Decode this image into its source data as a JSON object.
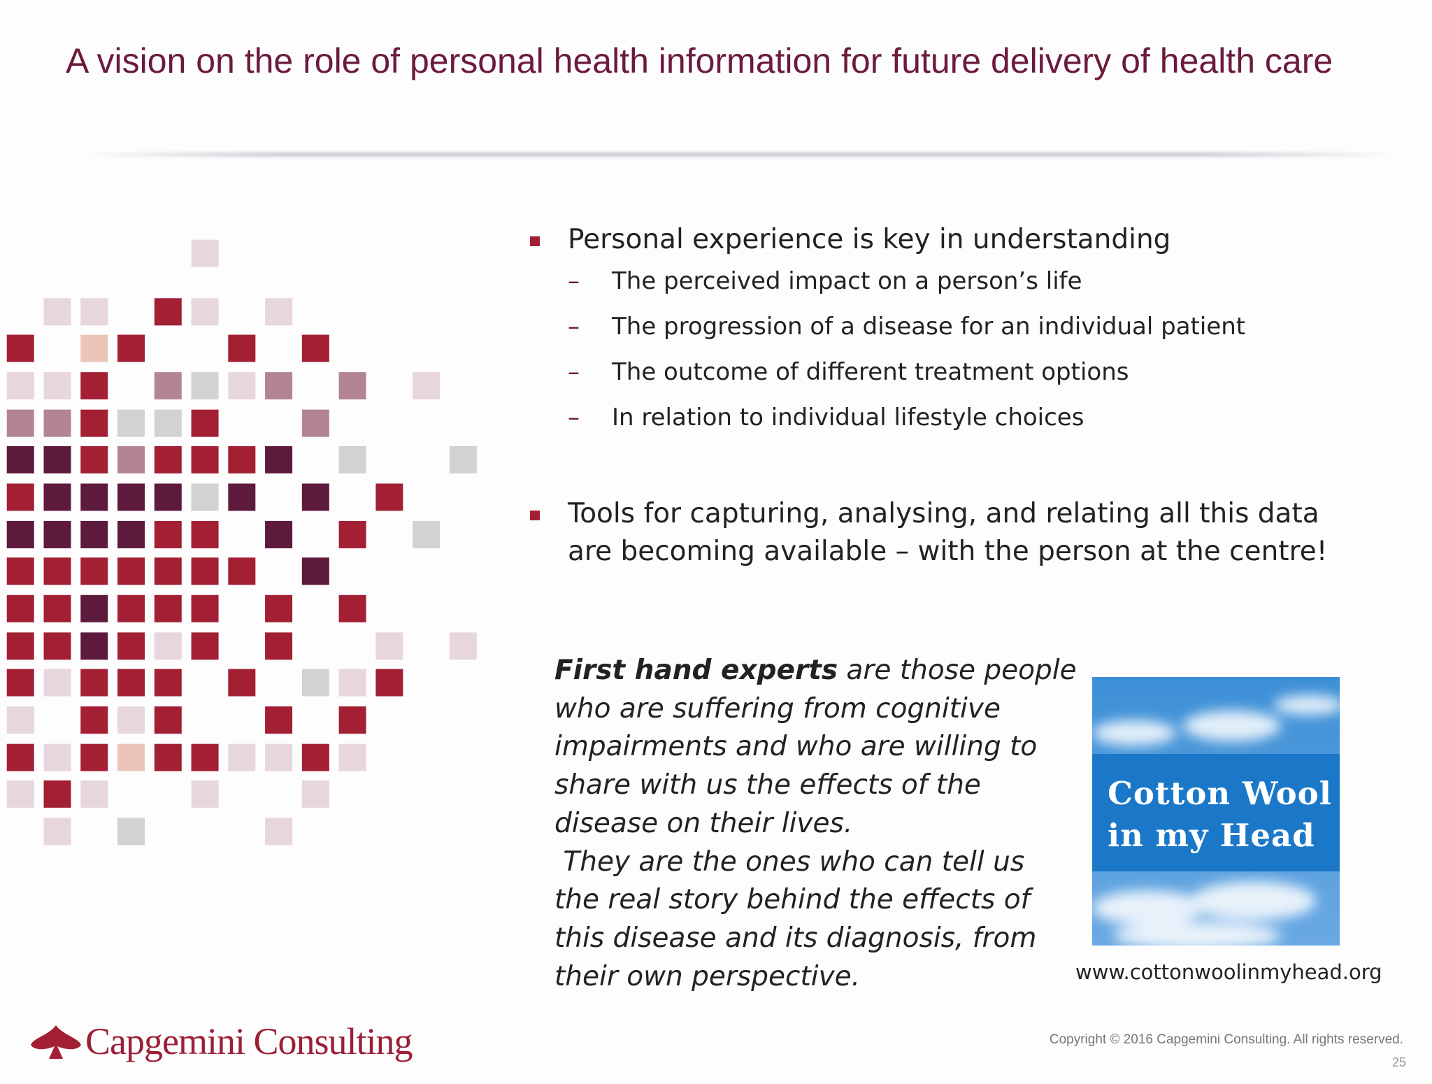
{
  "title": "A vision on the role of personal health information for future delivery of health care",
  "bullets": [
    {
      "lines": [
        "Personal experience is key in understanding"
      ],
      "subitems": [
        "The perceived impact on a person’s life",
        "The progression of a disease for an individual patient",
        "The outcome of different treatment options",
        "In relation to individual lifestyle choices"
      ]
    },
    {
      "lines": [
        "Tools for capturing, analysing, and relating all this data",
        "are becoming available – with the person at the centre!"
      ]
    }
  ],
  "quote": {
    "bold": "First hand experts",
    "lines": [
      " are those people",
      "who are suffering from cognitive",
      "impairments and who are willing to",
      "share with us the effects of the",
      "disease on their lives.",
      " They are the ones who can tell us",
      "the real story behind the effects of",
      "this disease and its diagnosis, from",
      "their own perspective."
    ]
  },
  "book": {
    "title_lines": [
      "Cotton Wool",
      "in my Head"
    ],
    "caption": "www.cottonwoolinmyhead.org"
  },
  "footer": {
    "logo": "Capgemini Consulting",
    "copyright": "Copyright © 2016 Capgemini Consulting. All rights reserved.",
    "page_number": "25"
  }
}
